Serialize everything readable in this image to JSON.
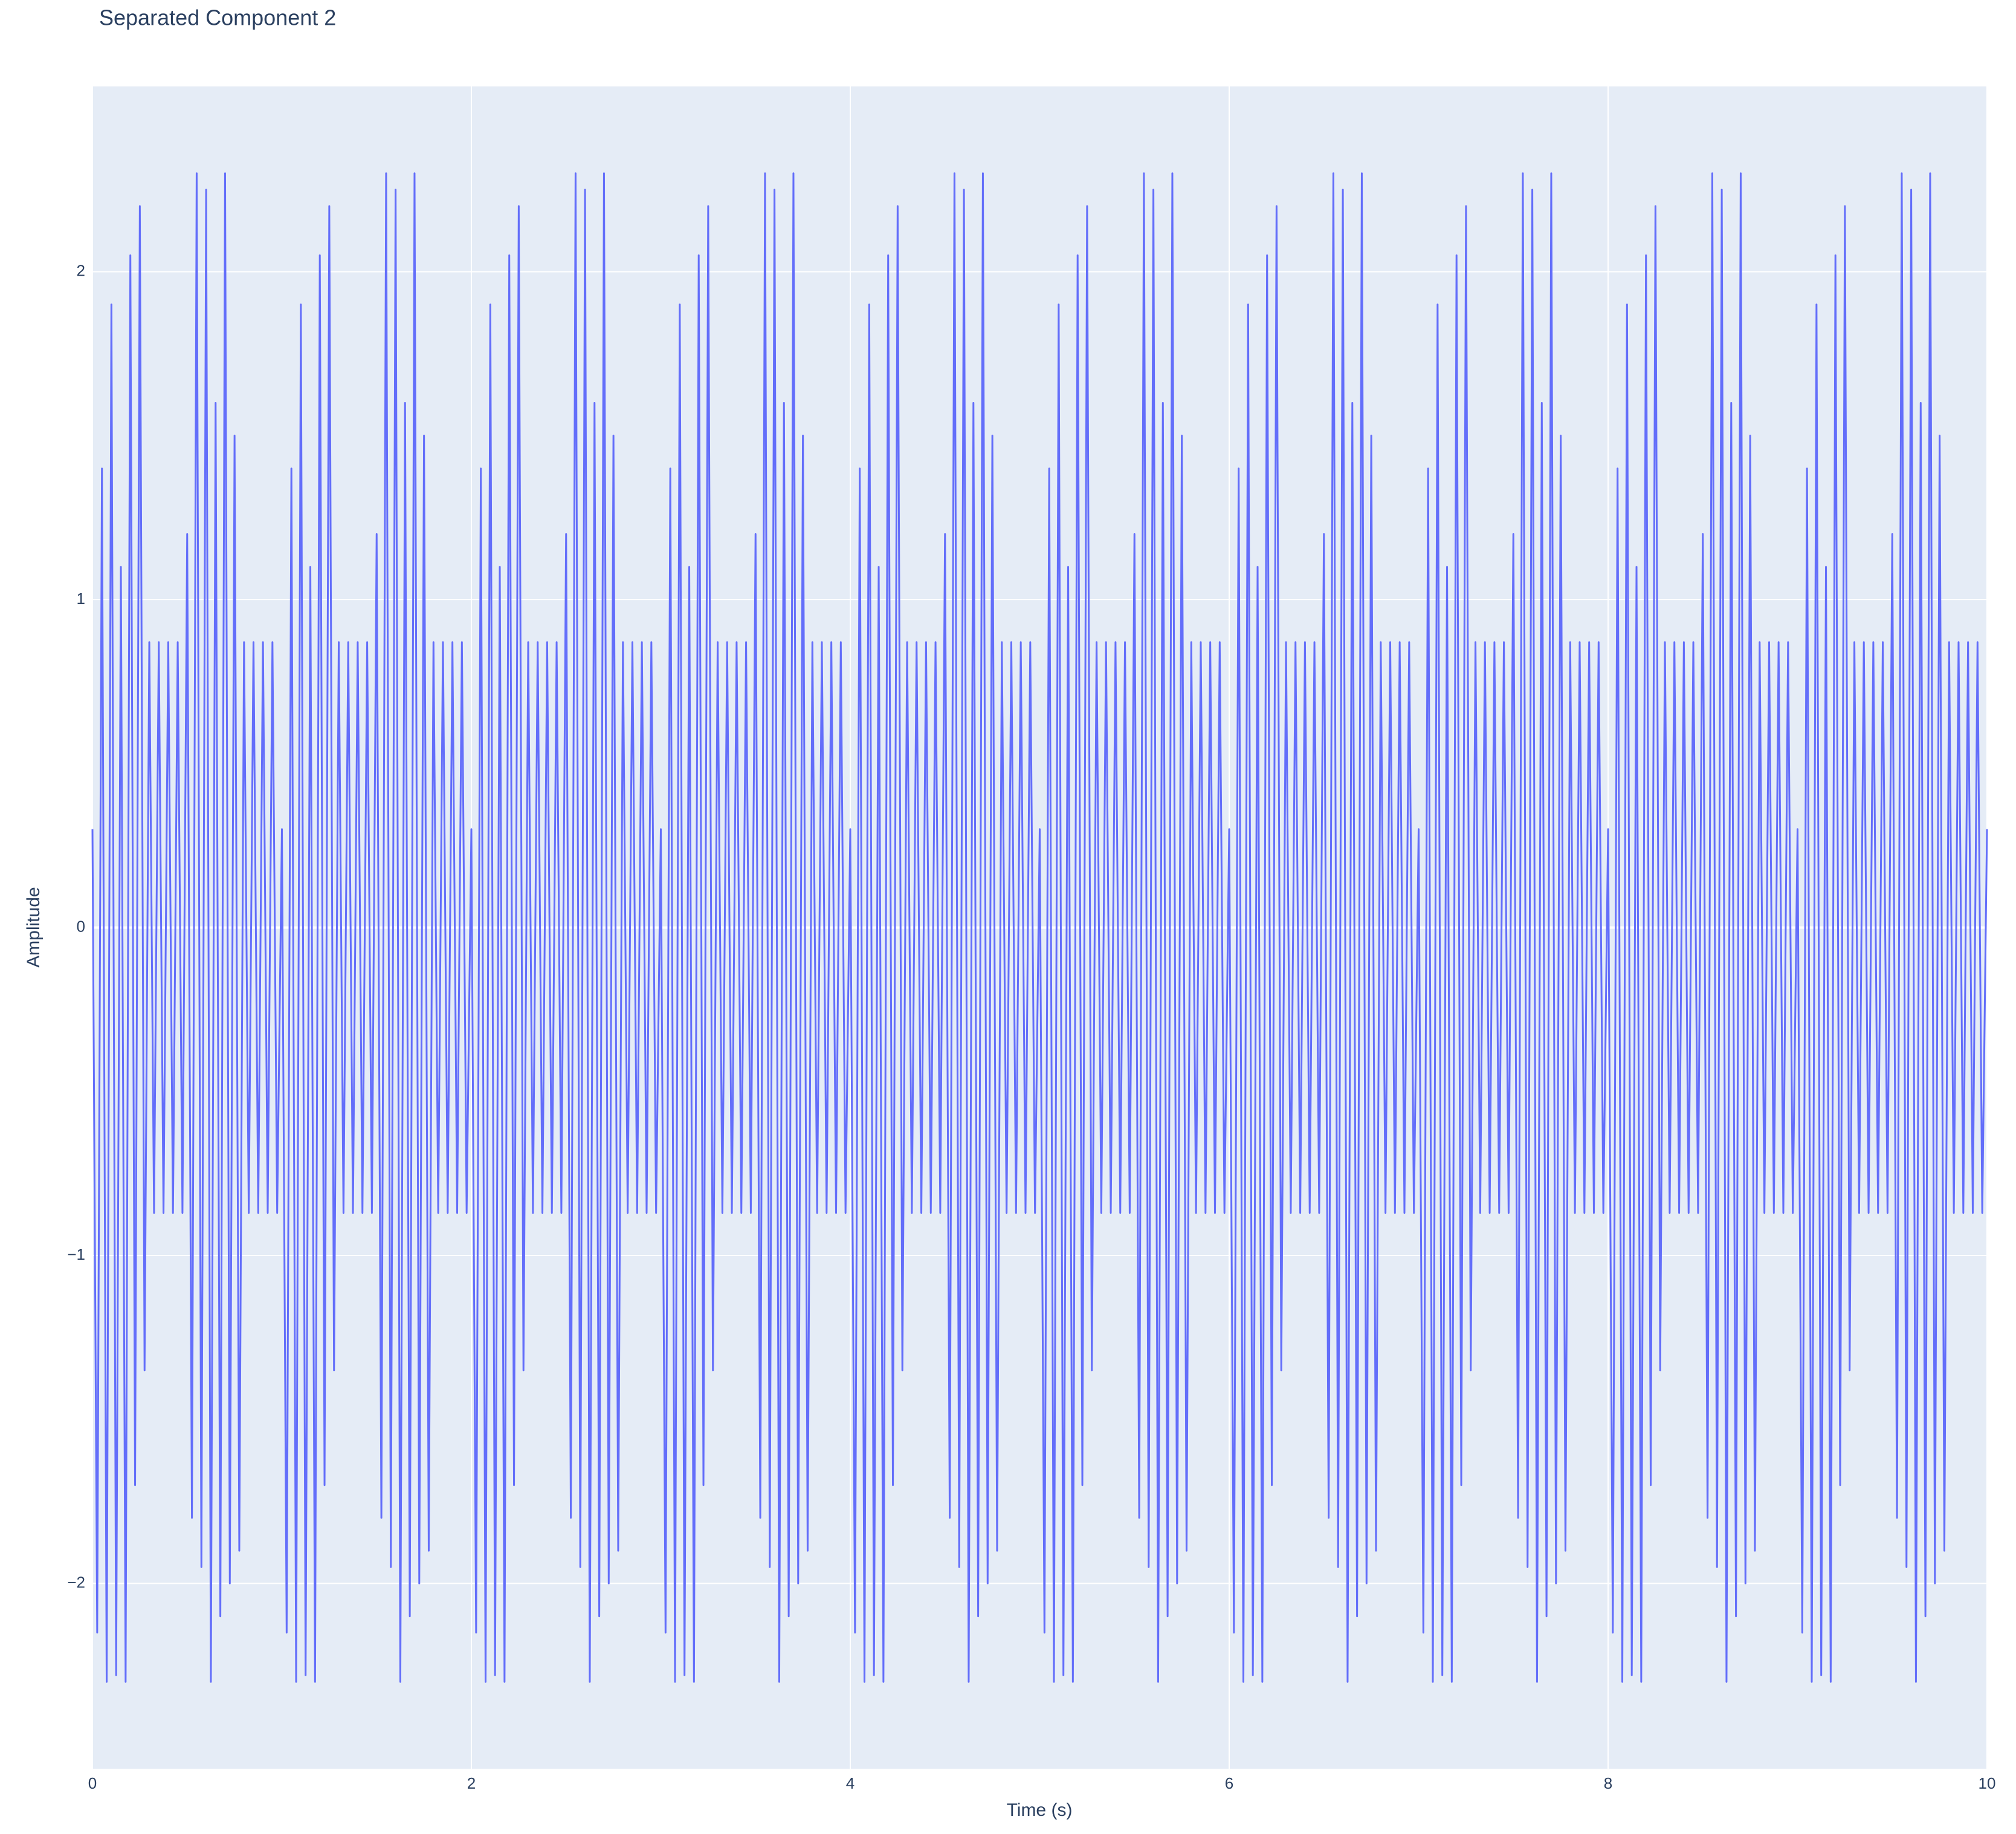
{
  "chart_data": {
    "type": "line",
    "title": "Separated Component 2",
    "x_label": "Time (s)",
    "y_label": "Amplitude",
    "xlim": [
      0,
      10
    ],
    "ylim": [
      -2.565,
      2.565
    ],
    "xticks": [
      0,
      2,
      4,
      6,
      8,
      10
    ],
    "yticks": [
      {
        "value": -2,
        "label": "−2"
      },
      {
        "value": -1,
        "label": "−1"
      },
      0,
      1,
      2
    ],
    "grid": true,
    "x": [
      0,
      0.025,
      0.05,
      0.075,
      0.1,
      0.125,
      0.15,
      0.175,
      0.2,
      0.225,
      0.25,
      0.275,
      0.3,
      0.325,
      0.35,
      0.375,
      0.4,
      0.425,
      0.45,
      0.475,
      0.5,
      0.525,
      0.55,
      0.575,
      0.6,
      0.625,
      0.65,
      0.675,
      0.7,
      0.725,
      0.75,
      0.775,
      0.8,
      0.825,
      0.85,
      0.875,
      0.9,
      0.925,
      0.95,
      0.975,
      1,
      1.025,
      1.05,
      1.075,
      1.1,
      1.125,
      1.15,
      1.175,
      1.2,
      1.225,
      1.25,
      1.275,
      1.3,
      1.325,
      1.35,
      1.375,
      1.4,
      1.425,
      1.45,
      1.475,
      1.5,
      1.525,
      1.55,
      1.575,
      1.6,
      1.625,
      1.65,
      1.675,
      1.7,
      1.725,
      1.75,
      1.775,
      1.8,
      1.825,
      1.85,
      1.875,
      1.9,
      1.925,
      1.95,
      1.975,
      2,
      2.025,
      2.05,
      2.075,
      2.1,
      2.125,
      2.15,
      2.175,
      2.2,
      2.225,
      2.25,
      2.275,
      2.3,
      2.325,
      2.35,
      2.375,
      2.4,
      2.425,
      2.45,
      2.475,
      2.5,
      2.525,
      2.55,
      2.575,
      2.6,
      2.625,
      2.65,
      2.675,
      2.7,
      2.725,
      2.75,
      2.775,
      2.8,
      2.825,
      2.85,
      2.875,
      2.9,
      2.925,
      2.95,
      2.975,
      3,
      3.025,
      3.05,
      3.075,
      3.1,
      3.125,
      3.15,
      3.175,
      3.2,
      3.225,
      3.25,
      3.275,
      3.3,
      3.325,
      3.35,
      3.375,
      3.4,
      3.425,
      3.45,
      3.475,
      3.5,
      3.525,
      3.55,
      3.575,
      3.6,
      3.625,
      3.65,
      3.675,
      3.7,
      3.725,
      3.75,
      3.775,
      3.8,
      3.825,
      3.85,
      3.875,
      3.9,
      3.925,
      3.95,
      3.975,
      4,
      4.025,
      4.05,
      4.075,
      4.1,
      4.125,
      4.15,
      4.175,
      4.2,
      4.225,
      4.25,
      4.275,
      4.3,
      4.325,
      4.35,
      4.375,
      4.4,
      4.425,
      4.45,
      4.475,
      4.5,
      4.525,
      4.55,
      4.575,
      4.6,
      4.625,
      4.65,
      4.675,
      4.7,
      4.725,
      4.75,
      4.775,
      4.8,
      4.825,
      4.85,
      4.875,
      4.9,
      4.925,
      4.95,
      4.975,
      5,
      5.025,
      5.05,
      5.075,
      5.1,
      5.125,
      5.15,
      5.175,
      5.2,
      5.225,
      5.25,
      5.275,
      5.3,
      5.325,
      5.35,
      5.375,
      5.4,
      5.425,
      5.45,
      5.475,
      5.5,
      5.525,
      5.55,
      5.575,
      5.6,
      5.625,
      5.65,
      5.675,
      5.7,
      5.725,
      5.75,
      5.775,
      5.8,
      5.825,
      5.85,
      5.875,
      5.9,
      5.925,
      5.95,
      5.975,
      6,
      6.025,
      6.05,
      6.075,
      6.1,
      6.125,
      6.15,
      6.175,
      6.2,
      6.225,
      6.25,
      6.275,
      6.3,
      6.325,
      6.35,
      6.375,
      6.4,
      6.425,
      6.45,
      6.475,
      6.5,
      6.525,
      6.55,
      6.575,
      6.6,
      6.625,
      6.65,
      6.675,
      6.7,
      6.725,
      6.75,
      6.775,
      6.8,
      6.825,
      6.85,
      6.875,
      6.9,
      6.925,
      6.95,
      6.975,
      7,
      7.025,
      7.05,
      7.075,
      7.1,
      7.125,
      7.15,
      7.175,
      7.2,
      7.225,
      7.25,
      7.275,
      7.3,
      7.325,
      7.35,
      7.375,
      7.4,
      7.425,
      7.45,
      7.475,
      7.5,
      7.525,
      7.55,
      7.575,
      7.6,
      7.625,
      7.65,
      7.675,
      7.7,
      7.725,
      7.75,
      7.775,
      7.8,
      7.825,
      7.85,
      7.875,
      7.9,
      7.925,
      7.95,
      7.975,
      8,
      8.025,
      8.05,
      8.075,
      8.1,
      8.125,
      8.15,
      8.175,
      8.2,
      8.225,
      8.25,
      8.275,
      8.3,
      8.325,
      8.35,
      8.375,
      8.4,
      8.425,
      8.45,
      8.475,
      8.5,
      8.525,
      8.55,
      8.575,
      8.6,
      8.625,
      8.65,
      8.675,
      8.7,
      8.725,
      8.75,
      8.775,
      8.8,
      8.825,
      8.85,
      8.875,
      8.9,
      8.925,
      8.95,
      8.975,
      9,
      9.025,
      9.05,
      9.075,
      9.1,
      9.125,
      9.15,
      9.175,
      9.2,
      9.225,
      9.25,
      9.275,
      9.3,
      9.325,
      9.35,
      9.375,
      9.4,
      9.425,
      9.45,
      9.475,
      9.5,
      9.525,
      9.55,
      9.575,
      9.6,
      9.625,
      9.65,
      9.675,
      9.7,
      9.725,
      9.75,
      9.775,
      9.8,
      9.825,
      9.85,
      9.875,
      9.9,
      9.925,
      9.95,
      9.975,
      10
    ],
    "series": [
      {
        "color": "#636efa",
        "values": [
          0.3,
          -2.15,
          1.4,
          -2.3,
          1.9,
          -2.28,
          1.1,
          -2.3,
          2.05,
          -1.7,
          2.2,
          -1.35,
          0.87,
          -0.87,
          0.87,
          -0.87,
          0.87,
          -0.87,
          0.87,
          -0.87,
          1.2,
          -1.8,
          2.3,
          -1.95,
          2.25,
          -2.3,
          1.6,
          -2.1,
          2.3,
          -2.0,
          1.5,
          -1.9,
          0.87,
          -0.87,
          0.87,
          -0.87,
          0.87,
          -0.87,
          0.87,
          -0.87,
          0.3,
          -2.15,
          1.4,
          -2.3,
          1.9,
          -2.28,
          1.1,
          -2.3,
          2.05,
          -1.7,
          2.2,
          -1.35,
          0.87,
          -0.87,
          0.87,
          -0.87,
          0.87,
          -0.87,
          0.87,
          -0.87,
          1.2,
          -1.8,
          2.3,
          -1.95,
          2.25,
          -2.3,
          1.6,
          -2.1,
          2.3,
          -2.0,
          1.5,
          -1.9,
          0.87,
          -0.87,
          0.87,
          -0.87,
          0.87,
          -0.87,
          0.87,
          -0.87,
          0.3,
          -2.15,
          1.4,
          -2.3,
          1.9,
          -2.28,
          1.1,
          -2.3,
          2.05,
          -1.7,
          2.2,
          -1.35,
          0.87,
          -0.87,
          0.87,
          -0.87,
          0.87,
          -0.87,
          0.87,
          -0.87,
          1.2,
          -1.8,
          2.3,
          -1.95,
          2.25,
          -2.3,
          1.6,
          -2.1,
          2.3,
          -2.0,
          1.5,
          -1.9,
          0.87,
          -0.87,
          0.87,
          -0.87,
          0.87,
          -0.87,
          0.87,
          -0.87,
          0.3,
          -2.15,
          1.4,
          -2.3,
          1.9,
          -2.28,
          1.1,
          -2.3,
          2.05,
          -1.7,
          2.2,
          -1.35,
          0.87,
          -0.87,
          0.87,
          -0.87,
          0.87,
          -0.87,
          0.87,
          -0.87,
          1.2,
          -1.8,
          2.3,
          -1.95,
          2.25,
          -2.3,
          1.6,
          -2.1,
          2.3,
          -2.0,
          1.5,
          -1.9,
          0.87,
          -0.87,
          0.87,
          -0.87,
          0.87,
          -0.87,
          0.87,
          -0.87,
          0.3,
          -2.15,
          1.4,
          -2.3,
          1.9,
          -2.28,
          1.1,
          -2.3,
          2.05,
          -1.7,
          2.2,
          -1.35,
          0.87,
          -0.87,
          0.87,
          -0.87,
          0.87,
          -0.87,
          0.87,
          -0.87,
          1.2,
          -1.8,
          2.3,
          -1.95,
          2.25,
          -2.3,
          1.6,
          -2.1,
          2.3,
          -2.0,
          1.5,
          -1.9,
          0.87,
          -0.87,
          0.87,
          -0.87,
          0.87,
          -0.87,
          0.87,
          -0.87,
          0.3,
          -2.15,
          1.4,
          -2.3,
          1.9,
          -2.28,
          1.1,
          -2.3,
          2.05,
          -1.7,
          2.2,
          -1.35,
          0.87,
          -0.87,
          0.87,
          -0.87,
          0.87,
          -0.87,
          0.87,
          -0.87,
          1.2,
          -1.8,
          2.3,
          -1.95,
          2.25,
          -2.3,
          1.6,
          -2.1,
          2.3,
          -2.0,
          1.5,
          -1.9,
          0.87,
          -0.87,
          0.87,
          -0.87,
          0.87,
          -0.87,
          0.87,
          -0.87,
          0.3,
          -2.15,
          1.4,
          -2.3,
          1.9,
          -2.28,
          1.1,
          -2.3,
          2.05,
          -1.7,
          2.2,
          -1.35,
          0.87,
          -0.87,
          0.87,
          -0.87,
          0.87,
          -0.87,
          0.87,
          -0.87,
          1.2,
          -1.8,
          2.3,
          -1.95,
          2.25,
          -2.3,
          1.6,
          -2.1,
          2.3,
          -2.0,
          1.5,
          -1.9,
          0.87,
          -0.87,
          0.87,
          -0.87,
          0.87,
          -0.87,
          0.87,
          -0.87,
          0.3,
          -2.15,
          1.4,
          -2.3,
          1.9,
          -2.28,
          1.1,
          -2.3,
          2.05,
          -1.7,
          2.2,
          -1.35,
          0.87,
          -0.87,
          0.87,
          -0.87,
          0.87,
          -0.87,
          0.87,
          -0.87,
          1.2,
          -1.8,
          2.3,
          -1.95,
          2.25,
          -2.3,
          1.6,
          -2.1,
          2.3,
          -2.0,
          1.5,
          -1.9,
          0.87,
          -0.87,
          0.87,
          -0.87,
          0.87,
          -0.87,
          0.87,
          -0.87,
          0.3,
          -2.15,
          1.4,
          -2.3,
          1.9,
          -2.28,
          1.1,
          -2.3,
          2.05,
          -1.7,
          2.2,
          -1.35,
          0.87,
          -0.87,
          0.87,
          -0.87,
          0.87,
          -0.87,
          0.87,
          -0.87,
          1.2,
          -1.8,
          2.3,
          -1.95,
          2.25,
          -2.3,
          1.6,
          -2.1,
          2.3,
          -2.0,
          1.5,
          -1.9,
          0.87,
          -0.87,
          0.87,
          -0.87,
          0.87,
          -0.87,
          0.87,
          -0.87,
          0.3,
          -2.15,
          1.4,
          -2.3,
          1.9,
          -2.28,
          1.1,
          -2.3,
          2.05,
          -1.7,
          2.2,
          -1.35,
          0.87,
          -0.87,
          0.87,
          -0.87,
          0.87,
          -0.87,
          0.87,
          -0.87,
          1.2,
          -1.8,
          2.3,
          -1.95,
          2.25,
          -2.3,
          1.6,
          -2.1,
          2.3,
          -2.0,
          1.5,
          -1.9,
          0.87,
          -0.87,
          0.87,
          -0.87,
          0.87,
          -0.87,
          0.87,
          -0.87,
          0.3
        ]
      }
    ]
  }
}
